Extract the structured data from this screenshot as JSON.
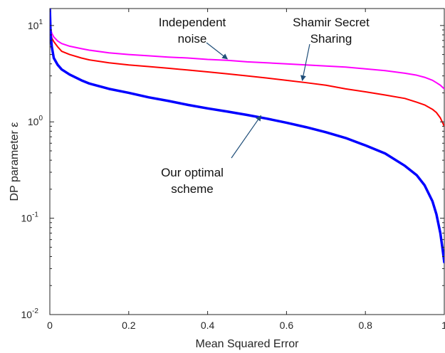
{
  "chart_data": {
    "type": "line",
    "xlabel": "Mean Squared Error",
    "ylabel": "DP parameter ε",
    "xlim": [
      0,
      1
    ],
    "ylim": [
      0.01,
      15
    ],
    "yscale": "log",
    "grid": false,
    "legend": "none",
    "x_ticks": [
      0,
      0.2,
      0.4,
      0.6,
      0.8,
      1
    ],
    "x_tick_labels": [
      "0",
      "0.2",
      "0.4",
      "0.6",
      "0.8",
      "1"
    ],
    "y_ticks": [
      0.01,
      0.1,
      1,
      10
    ],
    "y_tick_labels": [
      {
        "base": "10",
        "exp": "-2"
      },
      {
        "base": "10",
        "exp": "-1"
      },
      {
        "base": "10",
        "exp": "0"
      },
      {
        "base": "10",
        "exp": "1"
      }
    ],
    "series": [
      {
        "color": "#ff00ff",
        "x": [
          0,
          0.005,
          0.01,
          0.02,
          0.03,
          0.05,
          0.08,
          0.1,
          0.15,
          0.2,
          0.25,
          0.3,
          0.35,
          0.4,
          0.45,
          0.5,
          0.55,
          0.6,
          0.65,
          0.7,
          0.75,
          0.8,
          0.85,
          0.9,
          0.93,
          0.95,
          0.97,
          0.98,
          0.99,
          1.0
        ],
        "y": [
          10.0,
          8.3,
          7.6,
          6.9,
          6.5,
          6.1,
          5.75,
          5.55,
          5.2,
          5.0,
          4.85,
          4.7,
          4.6,
          4.45,
          4.35,
          4.2,
          4.1,
          4.0,
          3.9,
          3.8,
          3.7,
          3.55,
          3.4,
          3.2,
          3.05,
          2.9,
          2.7,
          2.55,
          2.4,
          2.2
        ]
      },
      {
        "color": "#ff0000",
        "x": [
          0,
          0.005,
          0.01,
          0.02,
          0.03,
          0.05,
          0.08,
          0.1,
          0.15,
          0.2,
          0.25,
          0.3,
          0.35,
          0.4,
          0.45,
          0.5,
          0.55,
          0.6,
          0.65,
          0.7,
          0.75,
          0.8,
          0.85,
          0.9,
          0.93,
          0.95,
          0.97,
          0.98,
          0.99,
          1.0
        ],
        "y": [
          9.0,
          7.4,
          6.8,
          6.0,
          5.4,
          5.0,
          4.6,
          4.4,
          4.1,
          3.9,
          3.75,
          3.6,
          3.45,
          3.3,
          3.15,
          3.0,
          2.85,
          2.7,
          2.55,
          2.4,
          2.2,
          2.05,
          1.9,
          1.75,
          1.6,
          1.5,
          1.35,
          1.25,
          1.1,
          0.9
        ]
      },
      {
        "color": "#0000ff",
        "x": [
          0,
          0.002,
          0.005,
          0.01,
          0.02,
          0.03,
          0.05,
          0.08,
          0.1,
          0.15,
          0.2,
          0.25,
          0.3,
          0.35,
          0.4,
          0.45,
          0.5,
          0.55,
          0.6,
          0.65,
          0.7,
          0.75,
          0.8,
          0.85,
          0.9,
          0.93,
          0.95,
          0.97,
          0.98,
          0.99,
          0.995,
          1.0
        ],
        "y": [
          15.0,
          8.0,
          6.0,
          4.6,
          3.9,
          3.5,
          3.1,
          2.7,
          2.5,
          2.2,
          2.0,
          1.8,
          1.65,
          1.5,
          1.38,
          1.28,
          1.18,
          1.08,
          0.98,
          0.88,
          0.78,
          0.68,
          0.57,
          0.47,
          0.35,
          0.28,
          0.22,
          0.15,
          0.11,
          0.07,
          0.05,
          0.035
        ]
      }
    ],
    "annotations": [
      {
        "lines": [
          "Independent",
          "noise"
        ],
        "arrow_to": [
          0.45,
          4.35
        ]
      },
      {
        "lines": [
          "Shamir Secret",
          "Sharing"
        ],
        "arrow_to": [
          0.64,
          2.6
        ]
      },
      {
        "lines": [
          "Our optimal",
          "scheme"
        ],
        "arrow_to": [
          0.535,
          1.12
        ]
      }
    ]
  }
}
